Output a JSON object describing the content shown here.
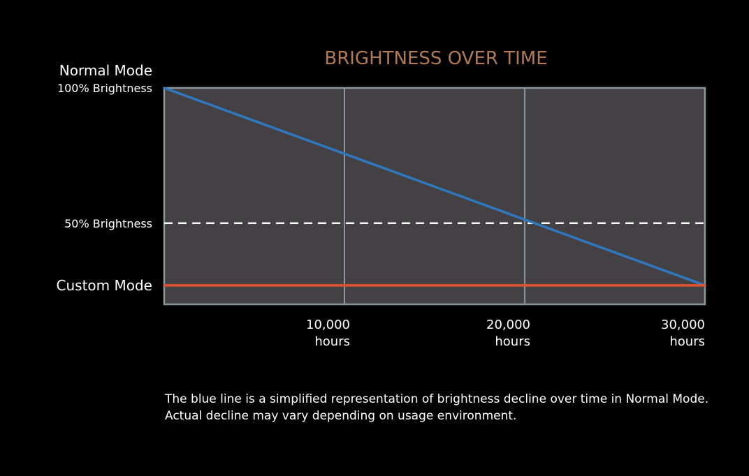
{
  "chart_data": {
    "type": "line",
    "title": "BRIGHTNESS OVER TIME",
    "x_ticks": [
      {
        "value": 10000,
        "label": "10,000",
        "unit": "hours"
      },
      {
        "value": 20000,
        "label": "20,000",
        "unit": "hours"
      },
      {
        "value": 30000,
        "label": "30,000",
        "unit": "hours"
      }
    ],
    "xlim": [
      0,
      30000
    ],
    "ylim": [
      20,
      100
    ],
    "y_labels": [
      {
        "value": 100,
        "label": "100% Brightness",
        "heading": "Normal Mode"
      },
      {
        "value": 50,
        "label": "50% Brightness"
      },
      {
        "value": 27,
        "label": "Custom Mode"
      }
    ],
    "series": [
      {
        "key": "normal",
        "x": [
          0,
          30000
        ],
        "y": [
          100,
          27
        ],
        "color": "#2f78be"
      },
      {
        "key": "custom",
        "x": [
          0,
          30000
        ],
        "y": [
          27,
          27
        ],
        "color": "#e0532d"
      }
    ],
    "reference_line": {
      "y": 50,
      "style": "dashed",
      "color": "#ffffff"
    },
    "grid": true,
    "colors": {
      "background": "#000000",
      "plot_background": "#434144",
      "grid": "#8a979b",
      "title": "#b07a55",
      "text": "#ffffff"
    },
    "footnote": "The blue line is a simplified representation of brightness decline over time in Normal Mode. Actual decline may vary depending on usage environment."
  }
}
